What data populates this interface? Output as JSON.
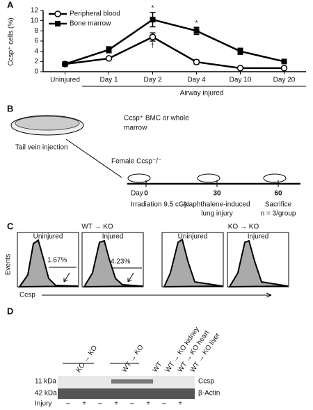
{
  "chart_data": {
    "type": "line",
    "panel": "A",
    "ylabel": "Ccsp⁺ cells (%)",
    "categories": [
      "Uninjured",
      "Day 1",
      "Day 2",
      "Day 4",
      "Day 10",
      "Day 20"
    ],
    "group_label": "Airway injured",
    "ylim": [
      0,
      12
    ],
    "yticks": [
      0,
      2,
      4,
      6,
      8,
      10,
      12
    ],
    "series": [
      {
        "name": "Peripheral blood",
        "color": "#000000",
        "marker": "open-circle",
        "values": [
          1.5,
          2.6,
          6.8,
          1.9,
          0.7,
          0.7
        ],
        "errors": [
          0.2,
          0.3,
          0.8,
          0.4,
          0.1,
          0.1
        ]
      },
      {
        "name": "Bone marrow",
        "color": "#000000",
        "marker": "square",
        "values": [
          1.5,
          4.3,
          10.2,
          8.0,
          4.0,
          2.0
        ],
        "errors": [
          0.2,
          0.6,
          1.4,
          0.7,
          0.6,
          0.4
        ]
      }
    ],
    "annotations": [
      {
        "text": "*",
        "series": 1,
        "index": 2
      },
      {
        "text": "*",
        "series": 1,
        "index": 3
      },
      {
        "text": "†",
        "series": 0,
        "index": 2
      }
    ]
  },
  "panel_b": {
    "label": "B",
    "cells": "Ccsp⁺ BMC or whole",
    "cells2": "marrow",
    "injection": "Tail vein injection",
    "recipient": "Female Ccsp⁻/⁻",
    "day": "Day",
    "day0": "0",
    "day30": "30",
    "day60": "60",
    "step0": "Irradiation 9.5 cGy",
    "step30a": "Naphthalene-induced",
    "step30b": "lung injury",
    "step60a": "Sacrifice",
    "step60b": "n = 3/group"
  },
  "panel_c": {
    "label": "C",
    "group1": "WT → KO",
    "group2": "KO → KO",
    "uninjured1": "Uninjured",
    "injured1": "Injured",
    "uninjured2": "Uninjured",
    "injured2": "Injured",
    "pct1": "1.67%",
    "pct2": "4.23%",
    "ylabel": "Events",
    "xlabel": "Ccsp"
  },
  "panel_d": {
    "label": "D",
    "lanes": [
      "KO → KO",
      "WT → KO",
      "WT",
      "WT → KO kidney",
      "WT → KO heart",
      "WT → KO liver"
    ],
    "kda11": "11 kDa",
    "kda42": "42 kDa",
    "band1": "Ccsp",
    "band2": "β-Actin",
    "injury": "Injury",
    "injury_signs": [
      "–",
      "+",
      "–",
      "+",
      "–",
      "+",
      "–",
      "+"
    ]
  }
}
